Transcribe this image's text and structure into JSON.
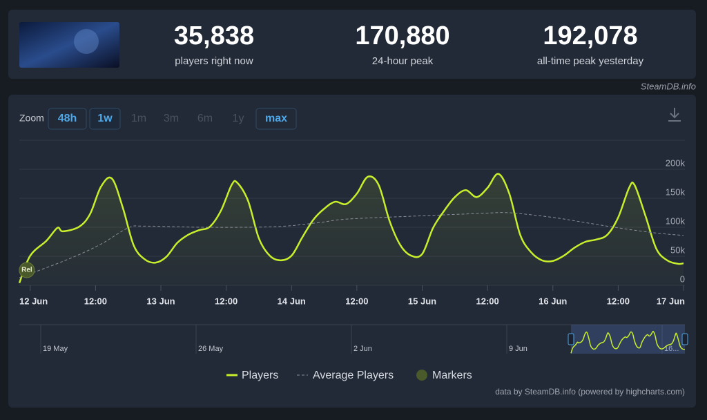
{
  "header": {
    "stats": [
      {
        "value": "35,838",
        "label": "players right now"
      },
      {
        "value": "170,880",
        "label": "24-hour peak"
      },
      {
        "value": "192,078",
        "label": "all-time peak yesterday"
      }
    ],
    "source": "SteamDB.info"
  },
  "zoom": {
    "label": "Zoom",
    "options": [
      "48h",
      "1w",
      "1m",
      "3m",
      "6m",
      "1y",
      "max"
    ]
  },
  "chart_data": {
    "type": "line",
    "xlim": [
      -2,
      120
    ],
    "xticks": [
      {
        "value": 0,
        "label": "12 Jun"
      },
      {
        "value": 12,
        "label": "12:00"
      },
      {
        "value": 24,
        "label": "13 Jun"
      },
      {
        "value": 36,
        "label": "12:00"
      },
      {
        "value": 48,
        "label": "14 Jun"
      },
      {
        "value": 60,
        "label": "12:00"
      },
      {
        "value": 72,
        "label": "15 Jun"
      },
      {
        "value": 84,
        "label": "12:00"
      },
      {
        "value": 96,
        "label": "16 Jun"
      },
      {
        "value": 108,
        "label": "12:00"
      },
      {
        "value": 120,
        "label": "17 Jun"
      }
    ],
    "ylim": [
      0,
      250000
    ],
    "yticks": [
      0,
      {
        "value": 50000,
        "label": "50k"
      },
      {
        "value": 100000,
        "label": "100k"
      },
      {
        "value": 150000,
        "label": "150k"
      },
      {
        "value": 200000,
        "label": "200k"
      }
    ],
    "grid": true,
    "series": [
      {
        "name": "Players",
        "color": "#c8ee2c",
        "x": [
          -2,
          0,
          3,
          5,
          6,
          9,
          11,
          13,
          15,
          17,
          19,
          21,
          23,
          25,
          27,
          29,
          31,
          33,
          35,
          37,
          38,
          40,
          42,
          44,
          46,
          48,
          50,
          52,
          54,
          56,
          58,
          60,
          62,
          64,
          66,
          68,
          70,
          72,
          74,
          76,
          78,
          80,
          82,
          84,
          86,
          88,
          90,
          92,
          94,
          96,
          98,
          100,
          102,
          104,
          106,
          108,
          110,
          111,
          113,
          115,
          117,
          119,
          120
        ],
        "values": [
          4000,
          51000,
          77000,
          99000,
          93000,
          101000,
          123000,
          170000,
          184000,
          134000,
          69000,
          45000,
          39000,
          49000,
          73000,
          87000,
          95000,
          101000,
          128000,
          173000,
          177000,
          146000,
          81000,
          51000,
          43000,
          51000,
          83000,
          113000,
          132000,
          144000,
          140000,
          158000,
          187000,
          173000,
          111000,
          69000,
          51000,
          54000,
          99000,
          128000,
          152000,
          164000,
          152000,
          168000,
          192000,
          158000,
          87000,
          57000,
          43000,
          42000,
          51000,
          65000,
          75000,
          79000,
          87000,
          117000,
          168000,
          173000,
          120000,
          63000,
          43000,
          37000,
          38000
        ]
      },
      {
        "name": "Average Players",
        "color": "#8a8f98",
        "x": [
          -2,
          7,
          13,
          18,
          21,
          32,
          45,
          53,
          58,
          70,
          83,
          88,
          96,
          102,
          108,
          115,
          120
        ],
        "values": [
          13000,
          45000,
          71000,
          99000,
          102000,
          100000,
          101000,
          108000,
          114000,
          119000,
          124000,
          125000,
          117000,
          108000,
          99000,
          90000,
          86000
        ]
      }
    ],
    "markers": {
      "name": "Markers",
      "color": "#4b5a2a",
      "items": [
        {
          "label": "Rel",
          "x": -1
        }
      ]
    },
    "navigator": {
      "labels": [
        "19 May",
        "26 May",
        "2 Jun",
        "9 Jun",
        "16..."
      ]
    },
    "credits": "data by SteamDB.info (powered by highcharts.com)"
  }
}
